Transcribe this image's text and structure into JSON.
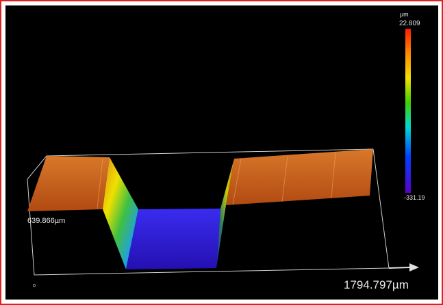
{
  "colorbar": {
    "unit": "µm",
    "max": "22.809",
    "min": "-331.19"
  },
  "axes": {
    "depth_label": "639.866µm",
    "width_label": "1794.797µm",
    "origin_label": "0"
  }
}
